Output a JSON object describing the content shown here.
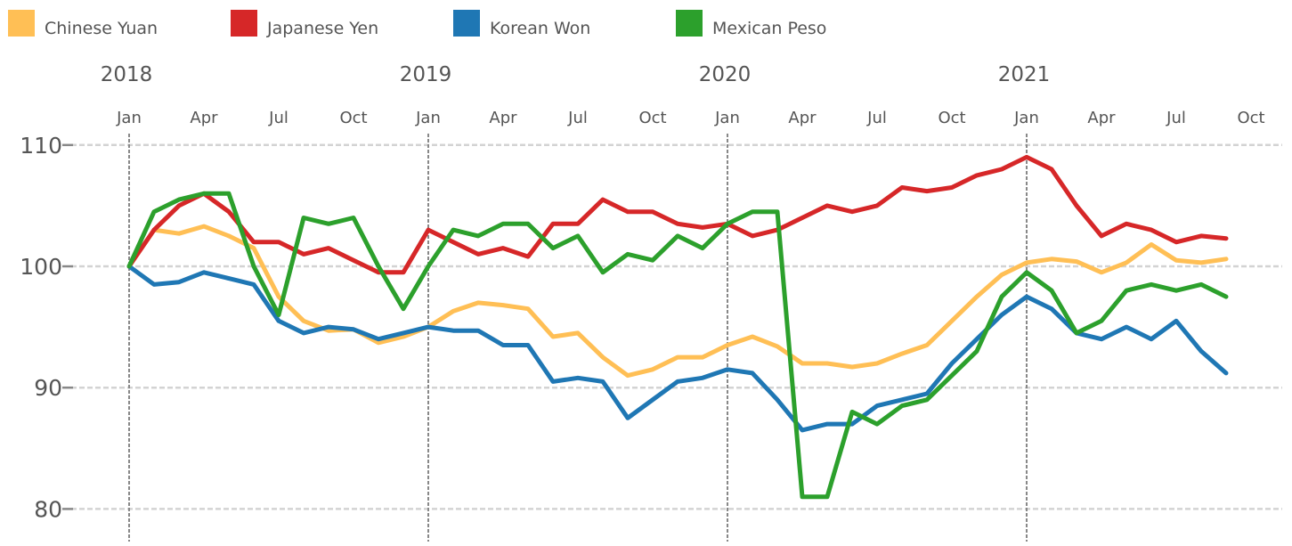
{
  "chart_data": {
    "type": "line",
    "title": "",
    "xlabel": "",
    "ylabel": "",
    "ylim": [
      78.5,
      111
    ],
    "xlim": [
      "2018-01-01",
      "2021-10-01"
    ],
    "grid": {
      "horizontal": true,
      "vertical_year_lines": true
    },
    "legend_position": "top-left",
    "y_ticks": [
      80,
      90,
      100,
      110
    ],
    "year_ticks": [
      {
        "label": "2018",
        "date": "2018-01-01"
      },
      {
        "label": "2019",
        "date": "2019-01-01"
      },
      {
        "label": "2020",
        "date": "2020-01-01"
      },
      {
        "label": "2021",
        "date": "2021-01-01"
      }
    ],
    "month_ticks": [
      {
        "label": "Jan",
        "date": "2018-01-01"
      },
      {
        "label": "Apr",
        "date": "2018-04-01"
      },
      {
        "label": "Jul",
        "date": "2018-07-01"
      },
      {
        "label": "Oct",
        "date": "2018-10-01"
      },
      {
        "label": "Jan",
        "date": "2019-01-01"
      },
      {
        "label": "Apr",
        "date": "2019-04-01"
      },
      {
        "label": "Jul",
        "date": "2019-07-01"
      },
      {
        "label": "Oct",
        "date": "2019-10-01"
      },
      {
        "label": "Jan",
        "date": "2020-01-01"
      },
      {
        "label": "Apr",
        "date": "2020-04-01"
      },
      {
        "label": "Jul",
        "date": "2020-07-01"
      },
      {
        "label": "Oct",
        "date": "2020-10-01"
      },
      {
        "label": "Jan",
        "date": "2021-01-01"
      },
      {
        "label": "Apr",
        "date": "2021-04-01"
      },
      {
        "label": "Jul",
        "date": "2021-07-01"
      },
      {
        "label": "Oct",
        "date": "2021-10-01"
      }
    ],
    "x": [
      "2018-01-01",
      "2018-02-01",
      "2018-03-01",
      "2018-04-01",
      "2018-05-01",
      "2018-06-01",
      "2018-07-01",
      "2018-08-01",
      "2018-09-01",
      "2018-10-01",
      "2018-11-01",
      "2018-12-01",
      "2019-01-01",
      "2019-02-01",
      "2019-03-01",
      "2019-04-01",
      "2019-05-01",
      "2019-06-01",
      "2019-07-01",
      "2019-08-01",
      "2019-09-01",
      "2019-10-01",
      "2019-11-01",
      "2019-12-01",
      "2020-01-01",
      "2020-02-01",
      "2020-03-01",
      "2020-04-01",
      "2020-05-01",
      "2020-06-01",
      "2020-07-01",
      "2020-08-01",
      "2020-09-01",
      "2020-10-01",
      "2020-11-01",
      "2020-12-01",
      "2021-01-01",
      "2021-02-01",
      "2021-03-01",
      "2021-04-01",
      "2021-05-01",
      "2021-06-01",
      "2021-07-01",
      "2021-08-01",
      "2021-09-01"
    ],
    "series": [
      {
        "name": "Chinese Yuan",
        "color": "#FFBF55",
        "values": [
          100,
          103,
          102.7,
          103.3,
          102.5,
          101.5,
          97.5,
          95.5,
          94.7,
          94.8,
          93.7,
          94.2,
          95,
          96.3,
          97,
          96.8,
          96.5,
          94.2,
          94.5,
          92.5,
          91,
          91.5,
          92.5,
          92.5,
          93.5,
          94.2,
          93.4,
          92,
          92,
          91.7,
          92,
          92.8,
          93.5,
          95.5,
          97.5,
          99.3,
          100.3,
          100.6,
          100.4,
          99.5,
          100.3,
          101.8,
          100.5,
          100.3,
          100.6
        ]
      },
      {
        "name": "Japanese Yen",
        "color": "#D62728",
        "values": [
          100,
          103,
          105,
          106,
          104.5,
          102,
          102,
          101,
          101.5,
          100.5,
          99.5,
          99.5,
          103,
          102,
          101,
          101.5,
          100.8,
          103.5,
          103.5,
          105.5,
          104.5,
          104.5,
          103.5,
          103.2,
          103.5,
          102.5,
          103,
          104,
          105,
          104.5,
          105,
          106.5,
          106.2,
          106.5,
          107.5,
          108,
          109,
          108,
          105,
          102.5,
          103.5,
          103,
          102,
          102.5,
          102.3
        ]
      },
      {
        "name": "Korean Won",
        "color": "#1F77B4",
        "values": [
          100,
          98.5,
          98.7,
          99.5,
          99,
          98.5,
          95.5,
          94.5,
          95,
          94.8,
          94,
          94.5,
          95,
          94.7,
          94.7,
          93.5,
          93.5,
          90.5,
          90.8,
          90.5,
          87.5,
          89,
          90.5,
          90.8,
          91.5,
          91.2,
          89,
          86.5,
          87,
          87,
          88.5,
          89,
          89.5,
          92,
          94,
          96,
          97.5,
          96.5,
          94.5,
          94,
          95,
          94,
          95.5,
          93,
          91.2
        ]
      },
      {
        "name": "Mexican Peso",
        "color": "#2CA02C",
        "values": [
          100,
          104.5,
          105.5,
          106,
          106,
          100,
          96,
          104,
          103.5,
          104,
          100,
          96.5,
          100,
          103,
          102.5,
          103.5,
          103.5,
          101.5,
          102.5,
          99.5,
          101,
          100.5,
          102.5,
          101.5,
          103.5,
          104.5,
          104.5,
          81,
          81,
          88,
          87,
          88.5,
          89,
          91,
          93,
          97.5,
          99.5,
          98,
          94.5,
          95.5,
          98,
          98.5,
          98,
          98.5,
          97.5
        ]
      }
    ]
  }
}
